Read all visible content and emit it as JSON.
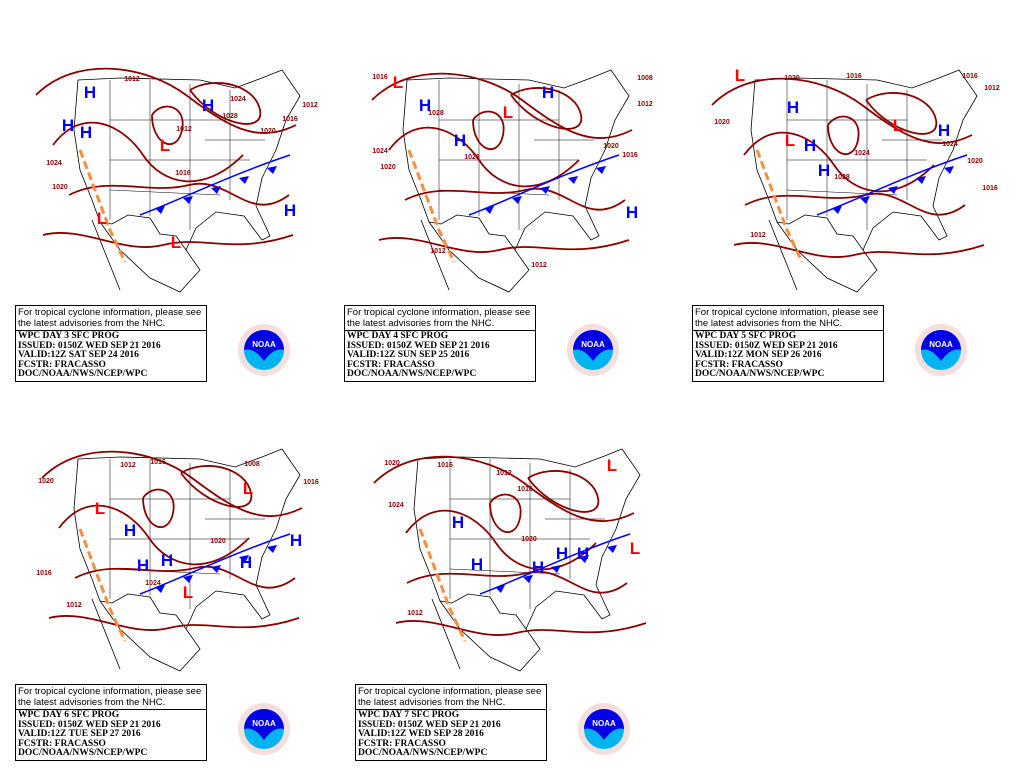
{
  "colors": {
    "isobar": "#8b0000",
    "high": "#0000ff",
    "low": "#ff0000",
    "trough": "#ff8c3c",
    "cold_front": "#0000ff",
    "warm_front": "#ff0000",
    "occluded": "#a020f0"
  },
  "panels": [
    {
      "notice": [
        "For tropical cyclone information, please see",
        "the latest advisories from the NHC."
      ],
      "title": "WPC DAY 3 SFC PROG",
      "issued": "ISSUED: 0150Z WED SEP 21 2016",
      "valid": "VALID:12Z SAT SEP 24 2016",
      "fcstr": "FCSTR: FRACASSO",
      "org": "DOC/NOAA/NWS/NCEP/WPC",
      "logo_text": "NOAA",
      "centers": [
        "H",
        "H",
        "H",
        "H",
        "H",
        "L",
        "L",
        "L"
      ],
      "isobar_labels": [
        "1012",
        "1016",
        "1020",
        "1024",
        "1028",
        "1012",
        "1016",
        "1012",
        "1024",
        "1020"
      ]
    },
    {
      "notice": [
        "For tropical cyclone information, please see",
        "the latest advisories from the NHC."
      ],
      "title": "WPC DAY 4 SFC PROG",
      "issued": "ISSUED: 0150Z WED SEP 21 2016",
      "valid": "VALID:12Z SUN SEP 25 2016",
      "fcstr": "FCSTR: FRACASSO",
      "org": "DOC/NOAA/NWS/NCEP/WPC",
      "logo_text": "NOAA",
      "centers": [
        "H",
        "H",
        "H",
        "H",
        "L",
        "L"
      ],
      "isobar_labels": [
        "1016",
        "1008",
        "1012",
        "1028",
        "1028",
        "1020",
        "1024",
        "1020",
        "1016",
        "1012",
        "1012"
      ]
    },
    {
      "notice": [
        "For tropical cyclone information, please see",
        "the latest advisories from the NHC."
      ],
      "title": "WPC DAY 5 SFC PROG",
      "issued": "ISSUED: 0150Z WED SEP 21 2016",
      "valid": "VALID:12Z MON SEP 26 2016",
      "fcstr": "FCSTR: FRACASSO",
      "org": "DOC/NOAA/NWS/NCEP/WPC",
      "logo_text": "NOAA",
      "centers": [
        "H",
        "H",
        "H",
        "H",
        "L",
        "L",
        "L"
      ],
      "isobar_labels": [
        "1020",
        "1016",
        "1016",
        "1012",
        "1020",
        "1028",
        "1024",
        "1024",
        "1020",
        "1016",
        "1012"
      ]
    },
    {
      "notice": [
        "For tropical cyclone information, please see",
        "the latest advisories from the NHC."
      ],
      "title": "WPC DAY 6 SFC PROG",
      "issued": "ISSUED: 0150Z WED SEP 21 2016",
      "valid": "VALID:12Z TUE SEP 27 2016",
      "fcstr": "FCSTR: FRACASSO",
      "org": "DOC/NOAA/NWS/NCEP/WPC",
      "logo_text": "NOAA",
      "centers": [
        "H",
        "H",
        "H",
        "H",
        "H",
        "L",
        "L",
        "L"
      ],
      "isobar_labels": [
        "1020",
        "1012",
        "1016",
        "1008",
        "1016",
        "1020",
        "1024",
        "1016",
        "1012"
      ]
    },
    {
      "notice": [
        "For tropical cyclone information, please see",
        "the latest advisories from the NHC."
      ],
      "title": "WPC DAY 7 SFC PROG",
      "issued": "ISSUED: 0150Z WED SEP 21 2016",
      "valid": "VALID:12Z WED SEP 28 2016",
      "fcstr": "FCSTR: FRACASSO",
      "org": "DOC/NOAA/NWS/NCEP/WPC",
      "logo_text": "NOAA",
      "centers": [
        "H",
        "H",
        "H",
        "H",
        "H",
        "L",
        "L"
      ],
      "isobar_labels": [
        "1020",
        "1016",
        "1012",
        "1016",
        "1024",
        "1020",
        "1012"
      ]
    }
  ]
}
